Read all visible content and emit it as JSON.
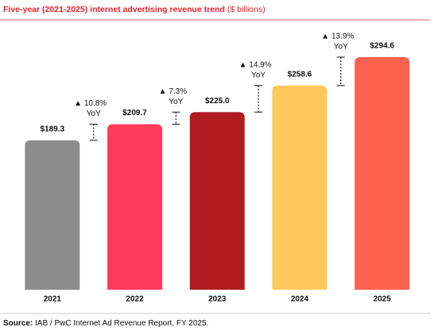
{
  "chart_data": {
    "type": "bar",
    "title": "Five-year (2021-2025) internet advertising revenue trend",
    "subtitle": "($ billions)",
    "categories": [
      "2021",
      "2022",
      "2023",
      "2024",
      "2025"
    ],
    "values": [
      189.3,
      209.7,
      225.0,
      258.6,
      294.6
    ],
    "value_labels": [
      "$189.3",
      "$209.7",
      "$225.0",
      "$258.6",
      "$294.6"
    ],
    "colors": [
      "#8c8c8c",
      "#ff3b5c",
      "#b01c22",
      "#ffc85a",
      "#ff6150"
    ],
    "yoy_values": [
      10.8,
      7.3,
      14.9,
      13.9
    ],
    "yoy_labels": [
      "▲ 10.8%",
      "▲ 7.3%",
      "▲ 14.9%",
      "▲ 13.9%"
    ],
    "yoy_unit": "YoY",
    "source_label": "Source:",
    "source": "IAB / PwC Internet Ad Revenue Report, FY 2025."
  }
}
